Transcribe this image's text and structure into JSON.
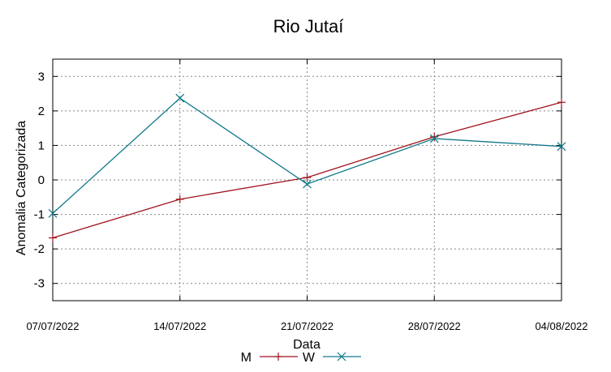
{
  "chart_data": {
    "type": "line",
    "title": "Rio Jutaí",
    "xlabel": "Data",
    "ylabel": "Anomalia Categorizada",
    "categories": [
      "07/07/2022",
      "14/07/2022",
      "21/07/2022",
      "28/07/2022",
      "04/08/2022"
    ],
    "ylim": [
      -3.5,
      3.5
    ],
    "yticks": [
      -3,
      -2,
      -1,
      0,
      1,
      2,
      3
    ],
    "ytick_labels": [
      "-3",
      "-2",
      "-1",
      "0",
      "1",
      "2",
      "3"
    ],
    "grid": true,
    "legend_position": "bottom-center",
    "series": [
      {
        "name": "M",
        "color": "#a0141e",
        "marker": "plus",
        "values": [
          -1.68,
          -0.56,
          0.07,
          1.25,
          2.25
        ]
      },
      {
        "name": "W",
        "color": "#0f7a8a",
        "marker": "x",
        "values": [
          -0.97,
          2.37,
          -0.12,
          1.2,
          0.97
        ]
      }
    ]
  }
}
